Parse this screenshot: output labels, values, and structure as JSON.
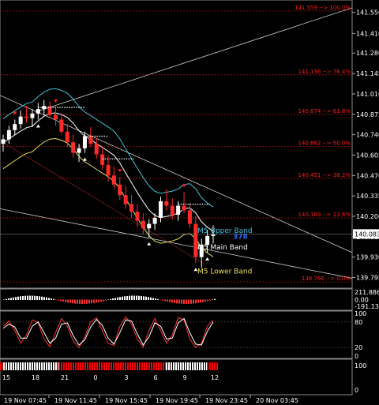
{
  "chart_data": [
    {
      "type": "candlestick",
      "panel": "main",
      "ylim": [
        139.74,
        141.6
      ],
      "y_ticks": [
        "141.550",
        "141.410",
        "141.280",
        "141.145",
        "141.010",
        "140.875",
        "140.740",
        "140.605",
        "140.470",
        "140.335",
        "140.200",
        "140.065",
        "139.930",
        "139.795"
      ],
      "current_price": "140.083",
      "fib_levels": [
        {
          "price": 141.559,
          "label": "141.559 --> 100.0%"
        },
        {
          "price": 141.136,
          "label": "141.136 --> 76.4%"
        },
        {
          "price": 140.874,
          "label": "140.874 --> 61.8%"
        },
        {
          "price": 140.662,
          "label": "140.662 --> 50.0%"
        },
        {
          "price": 140.451,
          "label": "140.451 --> 38.2%"
        },
        {
          "price": 140.189,
          "label": "140.189 --> 23.6%"
        },
        {
          "price": 139.766,
          "label": "139.766 --> 0.0%"
        }
      ],
      "band_labels": [
        {
          "text": "M5 Upper Band",
          "color": "#3fc1d6"
        },
        {
          "text": "M5 Main Band",
          "color": "#ffffff"
        },
        {
          "text": "M5 Lower Band",
          "color": "#e6e05a"
        }
      ],
      "annotation": "378",
      "candles": [
        [
          140.68,
          140.74,
          140.63,
          140.71
        ],
        [
          140.71,
          140.8,
          140.68,
          140.77
        ],
        [
          140.77,
          140.84,
          140.74,
          140.81
        ],
        [
          140.81,
          140.9,
          140.78,
          140.86
        ],
        [
          140.86,
          140.93,
          140.82,
          140.85
        ],
        [
          140.85,
          140.91,
          140.79,
          140.88
        ],
        [
          140.88,
          140.95,
          140.84,
          140.91
        ],
        [
          140.91,
          140.97,
          140.87,
          140.93
        ],
        [
          140.93,
          140.96,
          140.85,
          140.87
        ],
        [
          140.87,
          140.92,
          140.8,
          140.84
        ],
        [
          140.84,
          140.88,
          140.74,
          140.76
        ],
        [
          140.76,
          140.81,
          140.66,
          140.69
        ],
        [
          140.69,
          140.74,
          140.59,
          140.62
        ],
        [
          140.62,
          140.68,
          140.56,
          140.65
        ],
        [
          140.65,
          140.76,
          140.62,
          140.73
        ],
        [
          140.73,
          140.79,
          140.66,
          140.68
        ],
        [
          140.68,
          140.72,
          140.58,
          140.61
        ],
        [
          140.61,
          140.66,
          140.51,
          140.54
        ],
        [
          140.54,
          140.6,
          140.43,
          140.47
        ],
        [
          140.47,
          140.53,
          140.38,
          140.41
        ],
        [
          140.41,
          140.46,
          140.31,
          140.34
        ],
        [
          140.34,
          140.4,
          140.25,
          140.28
        ],
        [
          140.28,
          140.34,
          140.19,
          140.23
        ],
        [
          140.23,
          140.28,
          140.13,
          140.17
        ],
        [
          140.17,
          140.22,
          140.08,
          140.12
        ],
        [
          140.12,
          140.18,
          140.06,
          140.15
        ],
        [
          140.15,
          140.22,
          140.11,
          140.19
        ],
        [
          140.19,
          140.33,
          140.16,
          140.3
        ],
        [
          140.3,
          140.38,
          140.24,
          140.27
        ],
        [
          140.27,
          140.32,
          140.18,
          140.21
        ],
        [
          140.21,
          140.3,
          140.17,
          140.27
        ],
        [
          140.27,
          140.36,
          140.22,
          140.24
        ],
        [
          140.24,
          140.29,
          140.12,
          140.15
        ],
        [
          140.15,
          140.2,
          139.89,
          139.93
        ],
        [
          139.93,
          140.05,
          139.86,
          140.01
        ],
        [
          140.01,
          140.11,
          139.96,
          140.07
        ],
        [
          140.07,
          140.14,
          140.02,
          140.08
        ]
      ],
      "x_ticks": [
        "15",
        "18",
        "21",
        "0",
        "3",
        "6",
        "9",
        "12"
      ],
      "time_labels": [
        "19 Nov 07:45",
        "19 Nov 11:45",
        "19 Nov 15:45",
        "19 Nov 19:45",
        "19 Nov 23:45",
        "20 Nov 03:45"
      ]
    },
    {
      "type": "histogram",
      "panel": "indicator-1",
      "y_ticks": [
        "211.8863",
        "0.00",
        "-191.1377"
      ]
    },
    {
      "type": "line",
      "panel": "stochastic",
      "y_ticks": [
        "100",
        "80",
        "20",
        "0"
      ],
      "series": [
        {
          "color": "#ff3030",
          "values": [
            70,
            82,
            60,
            30,
            50,
            85,
            78,
            40,
            22,
            55,
            88,
            70,
            35,
            20,
            45,
            80,
            90,
            60,
            30,
            25,
            70,
            92,
            75,
            40,
            20,
            60,
            88,
            60,
            30,
            50,
            90,
            85,
            40,
            20,
            30,
            70,
            85
          ]
        },
        {
          "color": "#ffffff",
          "values": [
            65,
            75,
            68,
            42,
            42,
            70,
            80,
            55,
            30,
            42,
            75,
            78,
            48,
            26,
            38,
            68,
            86,
            72,
            42,
            28,
            55,
            85,
            82,
            52,
            26,
            45,
            78,
            70,
            40,
            42,
            78,
            88,
            55,
            28,
            26,
            58,
            80
          ]
        }
      ]
    },
    {
      "type": "bar",
      "panel": "trend-bars",
      "y_ticks": [
        "100",
        "0"
      ],
      "note_colors": [
        "#ff0000",
        "#ffffff"
      ]
    }
  ]
}
